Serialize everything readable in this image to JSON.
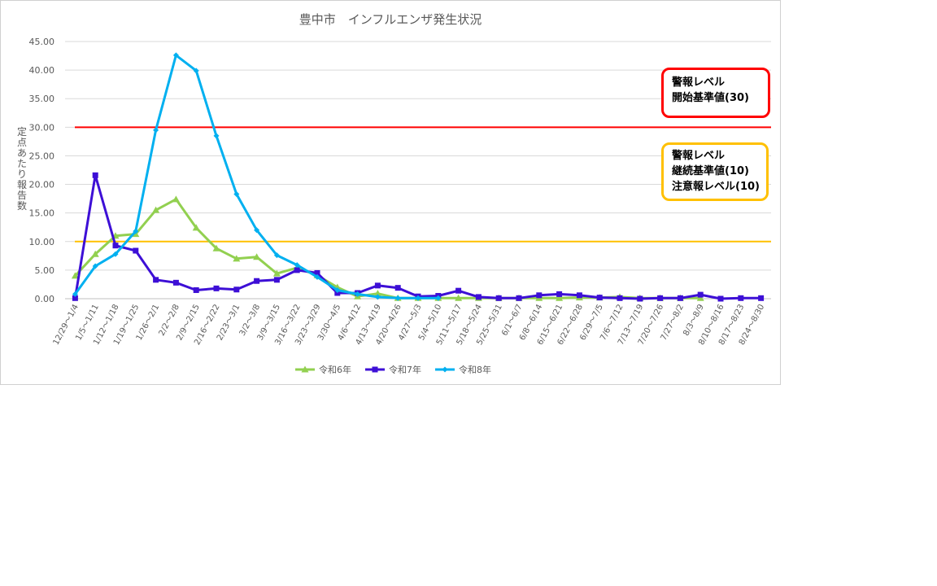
{
  "chart_data": {
    "type": "line",
    "title": "豊中市　インフルエンザ発生状況",
    "ylabel": "定点あたり報告数",
    "xlabel": "",
    "ylim": [
      0,
      45
    ],
    "ytick_labels": [
      "0.00",
      "5.00",
      "10.00",
      "15.00",
      "20.00",
      "25.00",
      "30.00",
      "35.00",
      "40.00",
      "45.00"
    ],
    "grid": "horizontal",
    "legend_position": "bottom",
    "categories": [
      "12/29～1/4",
      "1/5～1/11",
      "1/12～1/18",
      "1/19～1/25",
      "1/26～2/1",
      "2/2～2/8",
      "2/9～2/15",
      "2/16～2/22",
      "2/23～3/1",
      "3/2～3/8",
      "3/9～3/15",
      "3/16～3/22",
      "3/23～3/29",
      "3/30～4/5",
      "4/6～4/12",
      "4/13～4/19",
      "4/20～4/26",
      "4/27～5/3",
      "5/4～5/10",
      "5/11～5/17",
      "5/18～5/24",
      "5/25～5/31",
      "6/1～6/7",
      "6/8～6/14",
      "6/15～6/21",
      "6/22～6/28",
      "6/29～7/5",
      "7/6～7/12",
      "7/13～7/19",
      "7/20～7/26",
      "7/27～8/2",
      "8/3～8/9",
      "8/10～8/16",
      "8/17～8/23",
      "8/24～8/30"
    ],
    "series": [
      {
        "name": "令和6年",
        "color": "#92d050",
        "marker": "triangle",
        "values": [
          4.0,
          7.8,
          11.0,
          11.3,
          15.5,
          17.4,
          12.4,
          8.8,
          7.0,
          7.3,
          4.4,
          5.4,
          4.1,
          2.0,
          0.4,
          0.9,
          0.1,
          0.1,
          0.1,
          0.1,
          0.1,
          0.1,
          0.1,
          0.1,
          0.1,
          0.2,
          0.2,
          0.3,
          0.1,
          0.1,
          0.1,
          0.1,
          null,
          null,
          null
        ]
      },
      {
        "name": "令和7年",
        "color": "#3d0fd6",
        "marker": "square",
        "values": [
          0.1,
          21.6,
          9.3,
          8.4,
          3.3,
          2.8,
          1.5,
          1.8,
          1.6,
          3.1,
          3.3,
          5.0,
          4.5,
          1.0,
          1.0,
          2.3,
          1.9,
          0.4,
          0.5,
          1.4,
          0.3,
          0.1,
          0.1,
          0.6,
          0.8,
          0.6,
          0.2,
          0.1,
          0.0,
          0.1,
          0.1,
          0.7,
          0.0,
          0.1,
          0.1
        ]
      },
      {
        "name": "令和8年",
        "color": "#00b0f0",
        "marker": "diamond",
        "values": [
          0.8,
          5.7,
          7.8,
          11.8,
          29.5,
          42.6,
          39.9,
          28.5,
          18.3,
          12.0,
          7.6,
          5.9,
          3.8,
          1.5,
          0.8,
          0.3,
          0.1,
          0.1,
          0.1,
          null,
          null,
          null,
          null,
          null,
          null,
          null,
          null,
          null,
          null,
          null,
          null,
          null,
          null,
          null,
          null
        ]
      }
    ],
    "reference_lines": [
      {
        "value": 30,
        "color": "#ff0000"
      },
      {
        "value": 10,
        "color": "#ffc000"
      }
    ]
  },
  "annotations": {
    "alarm": {
      "line1": "警報レベル",
      "line2": "開始基準値(30)",
      "color": "#ff0000"
    },
    "watch": {
      "line1": "警報レベル",
      "line2": "継続基準値(10)",
      "line3": "注意報レベル(10)",
      "color": "#ffc000"
    }
  }
}
